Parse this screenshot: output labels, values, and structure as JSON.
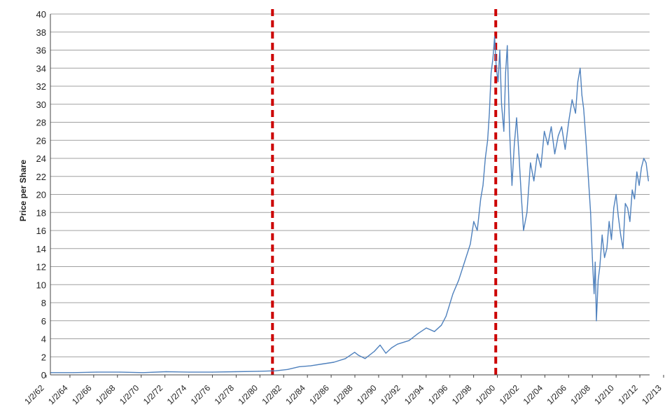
{
  "chart_data": {
    "type": "line",
    "title": "",
    "xlabel": "",
    "ylabel": "Price per Share",
    "ylim": [
      0,
      40
    ],
    "y_ticks": [
      0,
      2,
      4,
      6,
      8,
      10,
      12,
      14,
      16,
      18,
      20,
      22,
      24,
      26,
      28,
      30,
      32,
      34,
      36,
      38,
      40
    ],
    "x_tick_labels": [
      "1/2/62",
      "1/2/64",
      "1/2/66",
      "1/2/68",
      "1/2/70",
      "1/2/72",
      "1/2/74",
      "1/2/76",
      "1/2/78",
      "1/2/80",
      "1/2/82",
      "1/2/84",
      "1/2/86",
      "1/2/88",
      "1/2/90",
      "1/2/92",
      "1/2/94",
      "1/2/96",
      "1/2/98",
      "1/2/00",
      "1/2/02",
      "1/2/04",
      "1/2/06",
      "1/2/08",
      "1/2/10",
      "1/2/12",
      "1/2/13"
    ],
    "grid": true,
    "legend": "none",
    "series": [
      {
        "color": "#4f81bd",
        "x": [
          1962.0,
          1964.0,
          1966.0,
          1968.0,
          1970.0,
          1972.0,
          1974.0,
          1976.0,
          1978.0,
          1980.0,
          1981.5,
          1982.5,
          1983.5,
          1984.5,
          1985.5,
          1986.5,
          1987.5,
          1988.3,
          1988.6,
          1989.2,
          1990.0,
          1990.5,
          1991.0,
          1991.5,
          1992.0,
          1993.0,
          1993.8,
          1994.5,
          1995.2,
          1995.8,
          1996.2,
          1996.8,
          1997.3,
          1997.8,
          1998.3,
          1998.6,
          1998.9,
          1999.2,
          1999.4,
          1999.6,
          1999.8,
          1999.95,
          2000.1,
          2000.25,
          2000.4,
          2000.55,
          2000.7,
          2000.85,
          2001.0,
          2001.2,
          2001.35,
          2001.5,
          2001.7,
          2001.9,
          2002.1,
          2002.3,
          2002.5,
          2002.7,
          2002.9,
          2003.2,
          2003.5,
          2003.8,
          2004.1,
          2004.4,
          2004.7,
          2005.0,
          2005.3,
          2005.6,
          2005.9,
          2006.2,
          2006.5,
          2006.8,
          2007.1,
          2007.4,
          2007.6,
          2007.8,
          2007.95,
          2008.1,
          2008.3,
          2008.5,
          2008.7,
          2008.85,
          2009.0,
          2009.1,
          2009.2,
          2009.35,
          2009.5,
          2009.7,
          2009.9,
          2010.1,
          2010.3,
          2010.5,
          2010.7,
          2010.9,
          2011.1,
          2011.3,
          2011.5,
          2011.7,
          2011.9,
          2012.1,
          2012.3,
          2012.5,
          2012.7,
          2012.9,
          2013.1,
          2013.3,
          2013.5,
          2013.7
        ],
        "y": [
          0.25,
          0.25,
          0.3,
          0.3,
          0.25,
          0.35,
          0.3,
          0.3,
          0.35,
          0.4,
          0.45,
          0.6,
          0.9,
          1.0,
          1.2,
          1.4,
          1.8,
          2.5,
          2.2,
          1.8,
          2.6,
          3.3,
          2.4,
          3.0,
          3.4,
          3.8,
          4.6,
          5.2,
          4.8,
          5.5,
          6.5,
          9.0,
          10.5,
          12.5,
          14.5,
          17.0,
          16.0,
          19.5,
          21.0,
          24.0,
          26.0,
          29.0,
          33.5,
          35.0,
          37.5,
          34.0,
          32.5,
          36.0,
          30.0,
          27.0,
          33.5,
          36.5,
          27.0,
          21.0,
          25.5,
          28.5,
          24.5,
          20.0,
          16.0,
          18.0,
          23.5,
          21.5,
          24.5,
          23.0,
          27.0,
          25.5,
          27.5,
          24.5,
          26.5,
          27.5,
          25.0,
          28.0,
          30.5,
          29.0,
          32.5,
          34.0,
          31.0,
          29.5,
          26.0,
          22.0,
          18.0,
          13.0,
          9.0,
          12.5,
          6.0,
          10.5,
          12.0,
          15.5,
          13.0,
          14.0,
          17.0,
          15.0,
          18.5,
          20.0,
          17.5,
          15.5,
          14.0,
          19.0,
          18.5,
          17.0,
          20.5,
          19.5,
          22.5,
          21.0,
          23.0,
          24.0,
          23.5,
          21.5
        ]
      }
    ],
    "reference_lines": {
      "color": "#cc0000",
      "x": [
        1981.2,
        2000.5
      ]
    }
  },
  "colors": {
    "grid": "#a0a0a0",
    "axis": "#444444",
    "series": "#4f81bd",
    "reference": "#cc0000"
  }
}
